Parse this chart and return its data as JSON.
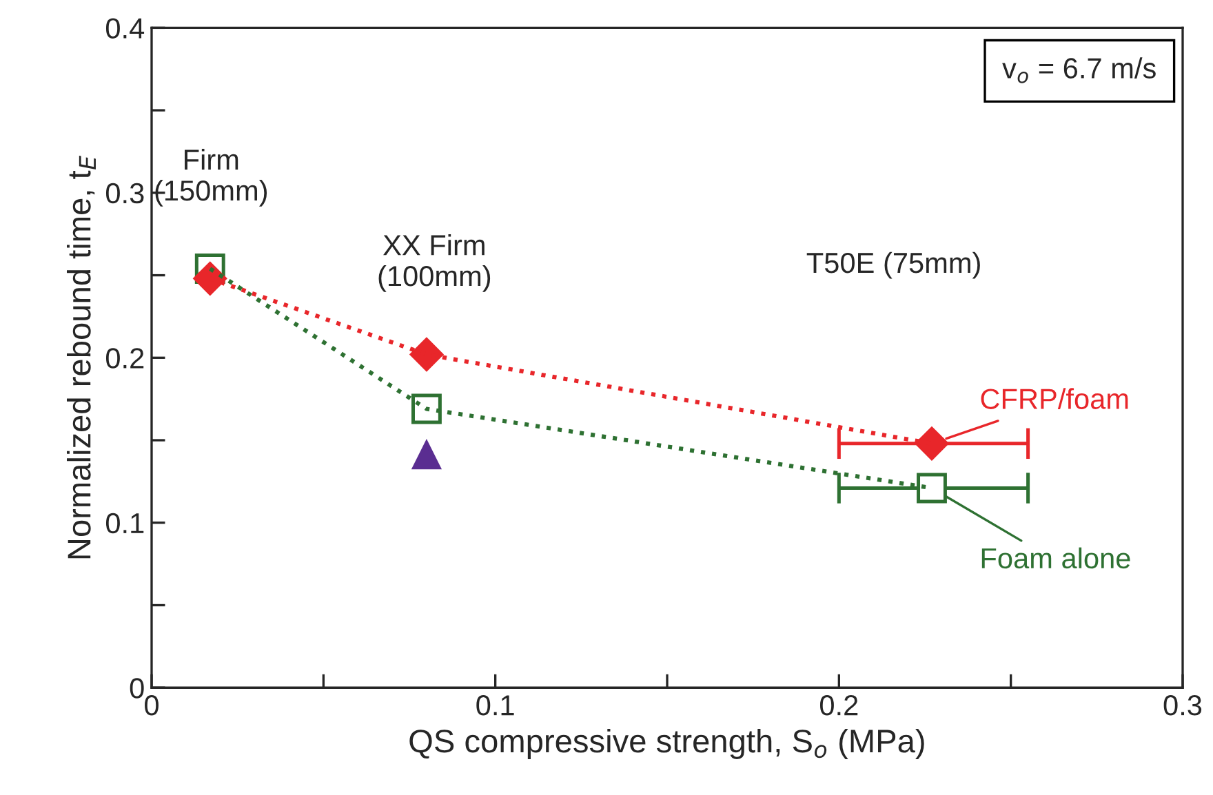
{
  "chart_data": {
    "type": "line",
    "xlabel": "QS compressive strength, S$_{o}$ (MPa)",
    "ylabel": "Normalized rebound time, t$_{E}$",
    "xlim": [
      0,
      0.3
    ],
    "xticks": [
      0,
      {
        "value": 0.05,
        "label": null
      },
      0.1,
      {
        "value": 0.15,
        "label": null
      },
      0.2,
      {
        "value": 0.25,
        "label": null
      },
      0.3
    ],
    "ylim": [
      0,
      0.4
    ],
    "yticks": [
      0,
      {
        "value": 0.05,
        "label": null
      },
      0.1,
      {
        "value": 0.15,
        "label": null
      },
      0.2,
      {
        "value": 0.25,
        "label": null
      },
      0.3,
      {
        "value": 0.35,
        "label": null
      },
      0.4
    ],
    "grid": false,
    "legend": "right",
    "line_style": "dotted",
    "series": [
      {
        "name": "CFRP/foam",
        "marker": "diamond",
        "color": "#e8262a",
        "x": [
          0.017,
          0.08,
          0.227
        ],
        "values": [
          0.248,
          0.202,
          0.148
        ],
        "xerrors": [
          null,
          null,
          [
            0.2,
            0.255
          ]
        ]
      },
      {
        "name": "Foam alone",
        "marker": "square",
        "color": "#2e7132",
        "x": [
          0.017,
          0.08,
          0.227
        ],
        "values": [
          0.254,
          0.169,
          0.121
        ],
        "xerrors": [
          null,
          null,
          [
            0.2,
            0.255
          ]
        ]
      },
      {
        "type": "scatter",
        "marker": "triangle",
        "color": "#5a2d91",
        "x": [
          0.08
        ],
        "values": [
          0.141
        ]
      }
    ],
    "annotations": [
      {
        "text": "Firm\n(150mm)",
        "x": 0.0173,
        "y": 0.2535
      },
      {
        "text": "XX Firm\n(100mm)",
        "x": 0.0795,
        "y": 0.2017
      },
      "T50E (75mm)",
      "v$_{o}$ = 6.7 m/s"
    ]
  }
}
